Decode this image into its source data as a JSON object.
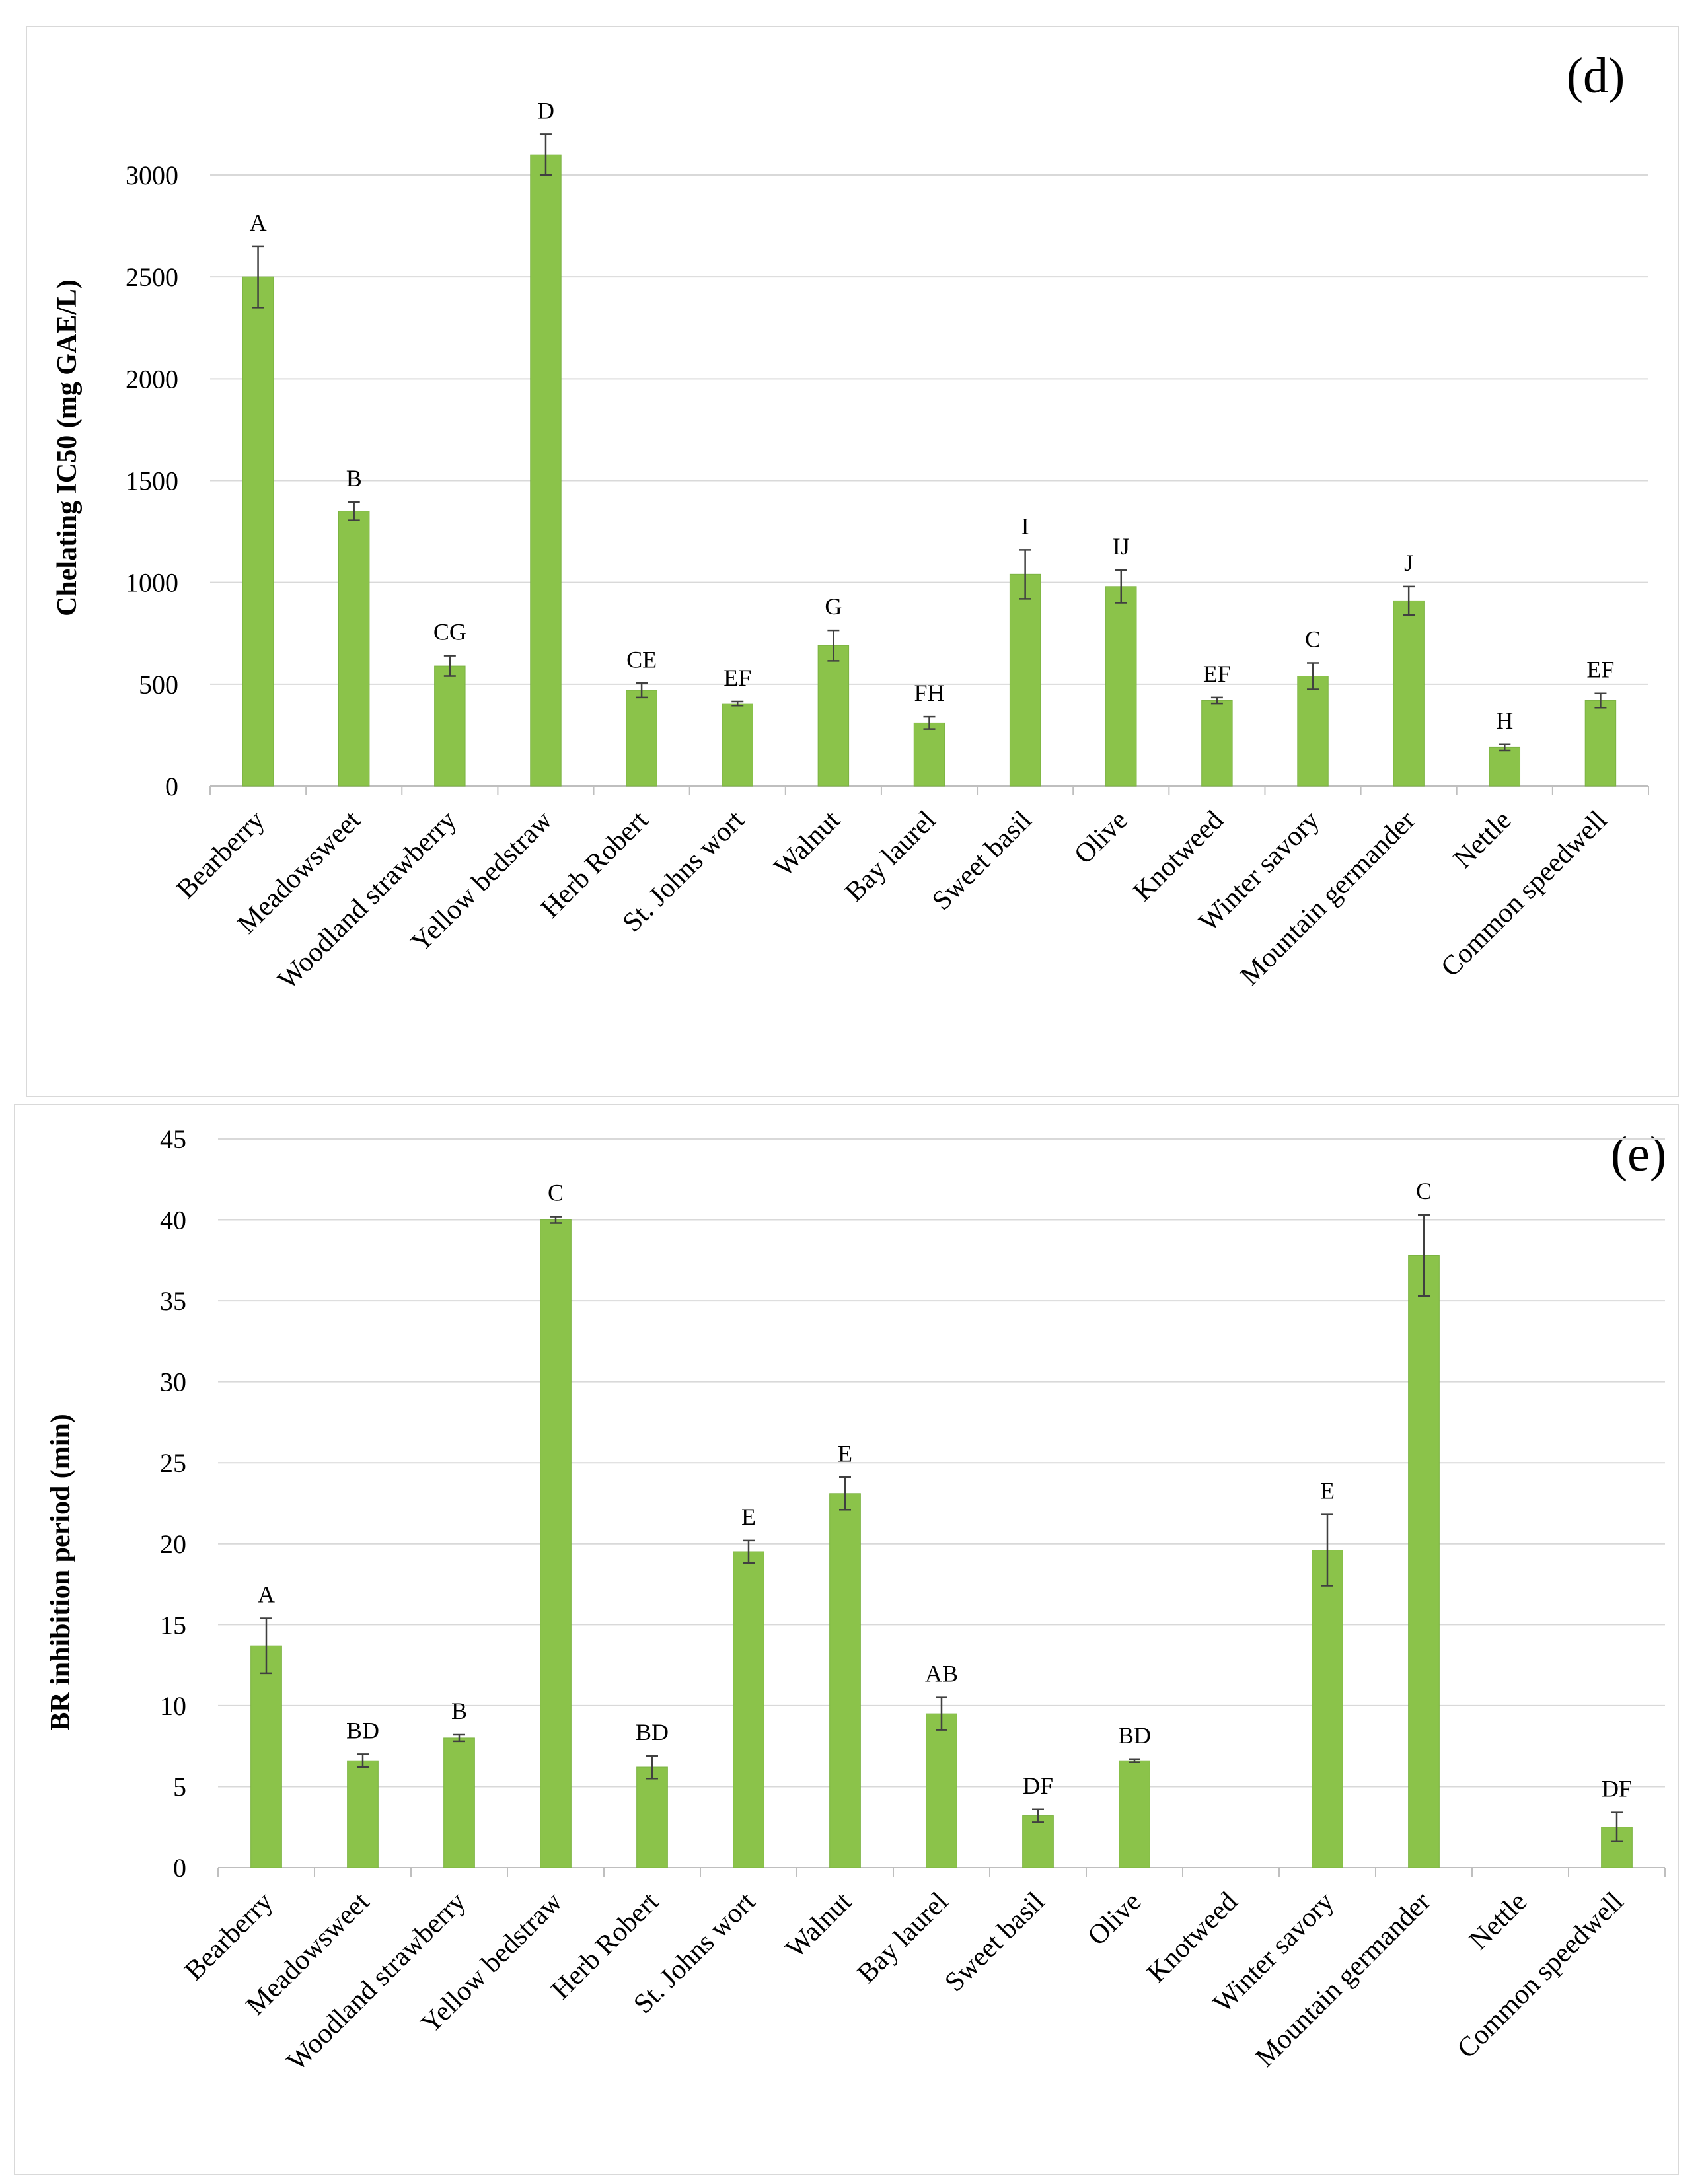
{
  "chart_data": [
    {
      "type": "bar",
      "title": "(d)",
      "xlabel": "",
      "ylabel": "Chelating IC50 (mg GAE/L)",
      "ylim": [
        0,
        3000
      ],
      "yticks": [
        0,
        500,
        1000,
        1500,
        2000,
        2500,
        3000
      ],
      "categories": [
        "Bearberry",
        "Meadowsweet",
        "Woodland strawberry",
        "Yellow bedstraw",
        "Herb Robert",
        "St. Johns wort",
        "Walnut",
        "Bay laurel",
        "Sweet basil",
        "Olive",
        "Knotweed",
        "Winter savory",
        "Mountain germander",
        "Nettle",
        "Common speedwell"
      ],
      "values": [
        2500,
        1350,
        590,
        3100,
        470,
        405,
        690,
        310,
        1040,
        980,
        420,
        540,
        910,
        190,
        420
      ],
      "errors": [
        150,
        45,
        50,
        100,
        35,
        10,
        75,
        30,
        120,
        80,
        15,
        65,
        70,
        15,
        35
      ],
      "labels": [
        "A",
        "B",
        "CG",
        "D",
        "CE",
        "EF",
        "G",
        "FH",
        "I",
        "IJ",
        "EF",
        "C",
        "J",
        "H",
        "EF"
      ],
      "grid": true,
      "legend": "none"
    },
    {
      "type": "bar",
      "title": "(e)",
      "xlabel": "",
      "ylabel": "BR inhibition period (min)",
      "ylim": [
        0,
        45
      ],
      "yticks": [
        0,
        5,
        10,
        15,
        20,
        25,
        30,
        35,
        40,
        45
      ],
      "categories": [
        "Bearberry",
        "Meadowsweet",
        "Woodland strawberry",
        "Yellow bedstraw",
        "Herb Robert",
        "St. Johns wort",
        "Walnut",
        "Bay laurel",
        "Sweet basil",
        "Olive",
        "Knotweed",
        "Winter savory",
        "Mountain germander",
        "Nettle",
        "Common speedwell"
      ],
      "values": [
        13.7,
        6.6,
        8.0,
        40.0,
        6.2,
        19.5,
        23.1,
        9.5,
        3.2,
        6.6,
        0,
        19.6,
        37.8,
        0,
        2.5
      ],
      "errors": [
        1.7,
        0.4,
        0.2,
        0.2,
        0.7,
        0.7,
        1.0,
        1.0,
        0.4,
        0.1,
        0,
        2.2,
        2.5,
        0,
        0.9
      ],
      "labels": [
        "A",
        "BD",
        "B",
        "C",
        "BD",
        "E",
        "E",
        "AB",
        "DF",
        "BD",
        "",
        "E",
        "C",
        "",
        "DF"
      ],
      "grid": true,
      "legend": "none"
    }
  ]
}
